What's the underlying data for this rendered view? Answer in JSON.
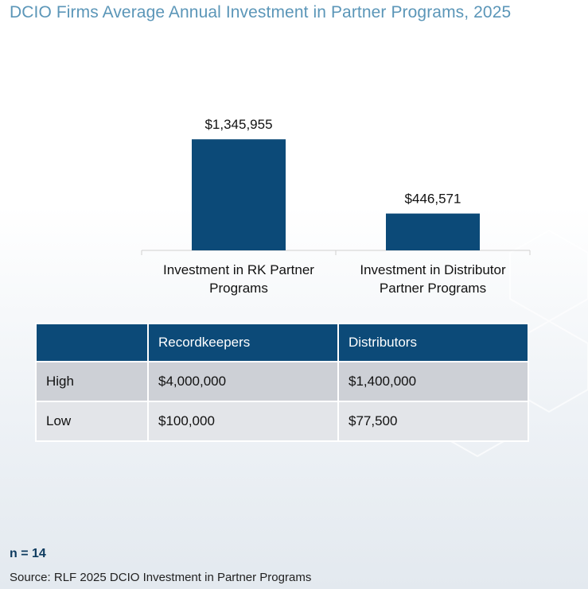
{
  "chart_data": {
    "type": "bar",
    "title": "DCIO Firms Average Annual Investment in Partner Programs, 2025",
    "categories": [
      [
        "Investment in RK Partner",
        "Programs"
      ],
      [
        "Investment in Distributor",
        "Partner Programs"
      ]
    ],
    "values": [
      1345955,
      446571
    ],
    "value_labels": [
      "$1,345,955",
      "$446,571"
    ],
    "ylim": [
      0,
      1500000
    ],
    "bar_color": "#0c4a78",
    "grid": false,
    "legend": "none"
  },
  "table": {
    "headers": [
      "",
      "Recordkeepers",
      "Distributors"
    ],
    "rows": [
      [
        "High",
        "$4,000,000",
        "$1,400,000"
      ],
      [
        "Low",
        "$100,000",
        "$77,500"
      ]
    ],
    "header_color": "#0c4a78"
  },
  "footer": {
    "n": "n = 14",
    "source": "Source: RLF 2025 DCIO Investment in Partner Programs"
  }
}
